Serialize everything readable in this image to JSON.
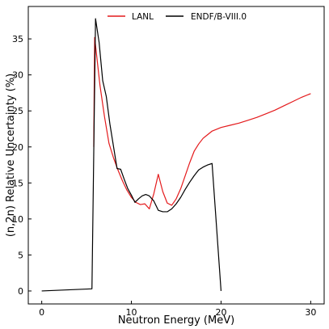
{
  "chart_data": {
    "type": "line",
    "xlabel": "Neutron Energy (MeV)",
    "ylabel": "(n,2n) Relative Uncertainty (%)",
    "xlim": [
      -1.5,
      31.5
    ],
    "ylim": [
      -1.8,
      39.5
    ],
    "xticks": [
      0,
      10,
      20,
      30
    ],
    "yticks": [
      0,
      5,
      10,
      15,
      20,
      25,
      30,
      35
    ],
    "grid": false,
    "legend_position": "top",
    "series": [
      {
        "name": "LANL",
        "color": "#e41a1c",
        "x": [
          5.8,
          5.9,
          6.5,
          7.0,
          7.5,
          8.0,
          8.5,
          9.0,
          9.5,
          10.0,
          10.5,
          11.0,
          11.5,
          12.0,
          12.5,
          13.0,
          13.5,
          14.0,
          14.5,
          15.0,
          15.5,
          16.0,
          16.5,
          17.0,
          17.5,
          18.0,
          18.5,
          19.0,
          20.0,
          21.0,
          22.0,
          23.0,
          24.0,
          25.0,
          26.0,
          27.0,
          28.0,
          29.0,
          30.0
        ],
        "y": [
          20.0,
          35.2,
          28.5,
          24.2,
          20.5,
          18.5,
          16.8,
          15.3,
          14.0,
          13.0,
          12.3,
          12.0,
          12.1,
          11.4,
          13.5,
          16.2,
          13.8,
          12.2,
          11.9,
          12.8,
          14.2,
          16.0,
          17.8,
          19.4,
          20.4,
          21.2,
          21.7,
          22.2,
          22.7,
          23.0,
          23.3,
          23.7,
          24.1,
          24.6,
          25.1,
          25.7,
          26.3,
          26.9,
          27.4
        ]
      },
      {
        "name": "ENDF/B-VIII.0",
        "color": "#000000",
        "x": [
          0.0,
          5.6,
          6.0,
          6.4,
          6.8,
          7.2,
          7.6,
          8.0,
          8.4,
          8.8,
          9.2,
          9.6,
          10.0,
          10.4,
          10.8,
          11.2,
          11.6,
          12.0,
          12.5,
          13.0,
          13.5,
          14.0,
          14.5,
          15.0,
          15.5,
          16.0,
          16.5,
          17.0,
          17.5,
          18.0,
          18.5,
          19.0,
          20.0
        ],
        "y": [
          0.0,
          0.3,
          37.8,
          34.5,
          29.2,
          27.0,
          23.2,
          20.1,
          17.0,
          16.9,
          15.5,
          14.2,
          13.3,
          12.3,
          12.8,
          13.2,
          13.4,
          13.2,
          12.5,
          11.2,
          11.0,
          11.0,
          11.4,
          12.1,
          13.0,
          14.1,
          15.1,
          16.0,
          16.8,
          17.2,
          17.5,
          17.7,
          0.0
        ]
      }
    ]
  }
}
